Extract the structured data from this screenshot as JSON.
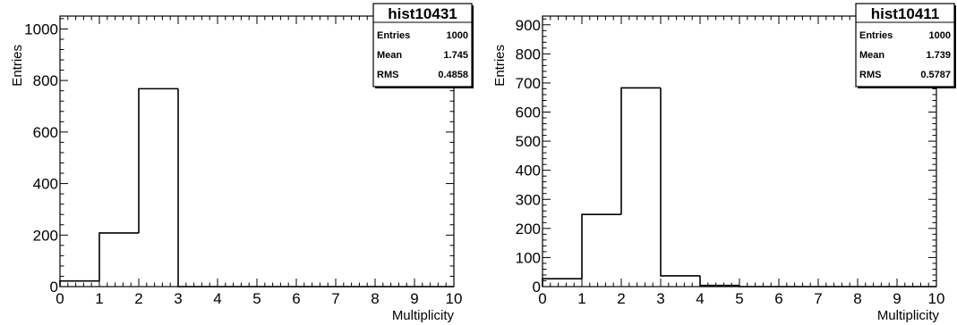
{
  "chart_data": [
    {
      "type": "bar",
      "name": "hist10431",
      "xlabel": "Multiplicity",
      "ylabel": "Entries",
      "xlim": [
        0,
        10
      ],
      "ylim": [
        0,
        1050
      ],
      "bin_width": 1,
      "x_ticks": [
        "0",
        "1",
        "2",
        "3",
        "4",
        "5",
        "6",
        "7",
        "8",
        "9",
        "10"
      ],
      "y_ticks": [
        "0",
        "200",
        "400",
        "600",
        "800",
        "1000"
      ],
      "bins": [
        {
          "x": 0,
          "value": 22
        },
        {
          "x": 1,
          "value": 208
        },
        {
          "x": 2,
          "value": 768
        },
        {
          "x": 3,
          "value": 0
        },
        {
          "x": 4,
          "value": 0
        },
        {
          "x": 5,
          "value": 0
        },
        {
          "x": 6,
          "value": 0
        },
        {
          "x": 7,
          "value": 0
        },
        {
          "x": 8,
          "value": 0
        },
        {
          "x": 9,
          "value": 0
        }
      ],
      "stats": {
        "title": "hist10431",
        "rows": [
          {
            "key": "Entries",
            "value": "1000"
          },
          {
            "key": "Mean",
            "value": "1.745"
          },
          {
            "key": "RMS",
            "value": "0.4858"
          }
        ]
      },
      "grid": false
    },
    {
      "type": "bar",
      "name": "hist10411",
      "xlabel": "Multiplicity",
      "ylabel": "Entries",
      "xlim": [
        0,
        10
      ],
      "ylim": [
        0,
        930
      ],
      "bin_width": 1,
      "x_ticks": [
        "0",
        "1",
        "2",
        "3",
        "4",
        "5",
        "6",
        "7",
        "8",
        "9",
        "10"
      ],
      "y_ticks": [
        "0",
        "100",
        "200",
        "300",
        "400",
        "500",
        "600",
        "700",
        "800",
        "900"
      ],
      "bins": [
        {
          "x": 0,
          "value": 27
        },
        {
          "x": 1,
          "value": 248
        },
        {
          "x": 2,
          "value": 683
        },
        {
          "x": 3,
          "value": 37
        },
        {
          "x": 4,
          "value": 4
        },
        {
          "x": 5,
          "value": 0
        },
        {
          "x": 6,
          "value": 0
        },
        {
          "x": 7,
          "value": 0
        },
        {
          "x": 8,
          "value": 0
        },
        {
          "x": 9,
          "value": 0
        }
      ],
      "stats": {
        "title": "hist10411",
        "rows": [
          {
            "key": "Entries",
            "value": "1000"
          },
          {
            "key": "Mean",
            "value": "1.739"
          },
          {
            "key": "RMS",
            "value": "0.5787"
          }
        ]
      },
      "grid": false
    }
  ]
}
